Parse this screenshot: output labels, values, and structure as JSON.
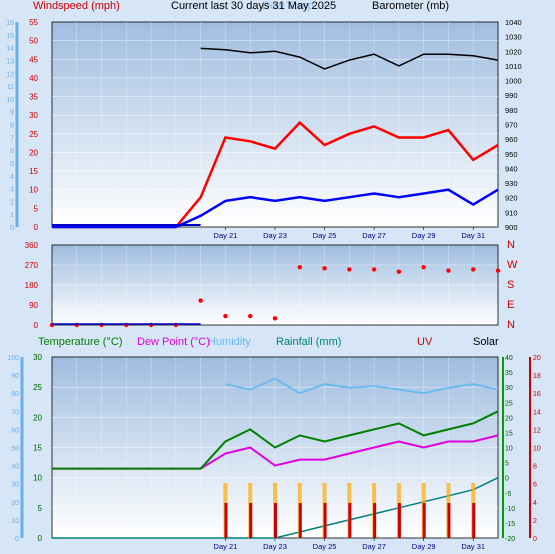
{
  "header": {
    "title": "Current last 30 days 31 May 2025",
    "legend": {
      "windspeed": "Windspeed (mph)",
      "ghost": "Dew Temp. ---",
      "barometer": "Barometer (mb)",
      "temperature": "Temperature (°C)",
      "dewpoint": "Dew Point (°C)",
      "humidity": "Humidity",
      "rainfall": "Rainfall (mm)",
      "uv": "UV",
      "solar": "Solar"
    }
  },
  "colors": {
    "background": "#d6e6f6",
    "plot_top": "#9fbde0",
    "plot_bottom": "#ffffff",
    "wind_gust": "#ff0000",
    "wind_avg": "#0000ff",
    "wind_label": "#cc0000",
    "barometer": "#000000",
    "pale_blue_axis": "#6aaeea",
    "temperature": "#008000",
    "dewpoint": "#e000e0",
    "humidity": "#66bbee",
    "rainfall": "#008080",
    "uv": "#cc0000",
    "solar_bars": "#ffaa00"
  },
  "chart_data": [
    {
      "type": "line",
      "title": "Windspeed / Barometer",
      "ylabel": "Windspeed (mph)",
      "y2label": "Barometer (mb)",
      "ylim": [
        0,
        55
      ],
      "y2lim": [
        900,
        1040
      ],
      "left_axis_labels": [
        "0",
        "5",
        "10",
        "15",
        "20",
        "25",
        "30",
        "35",
        "40",
        "45",
        "50",
        "55"
      ],
      "pale_axis_labels": [
        "0",
        "1",
        "2",
        "3",
        "4",
        "5",
        "6",
        "7",
        "8",
        "9",
        "10",
        "11",
        "12",
        "13",
        "14",
        "15",
        "16"
      ],
      "right_axis_labels": [
        "900",
        "910",
        "920",
        "930",
        "940",
        "950",
        "960",
        "970",
        "980",
        "990",
        "1000",
        "1010",
        "1020",
        "1030",
        "1040"
      ],
      "x_tick_labels": [
        "Day 21",
        "Day 23",
        "Day 25",
        "Day 27",
        "Day 29",
        "Day 31"
      ],
      "x_tick_days": [
        21,
        23,
        25,
        27,
        29,
        31
      ],
      "x_days": [
        14,
        15,
        16,
        17,
        18,
        19,
        20,
        21,
        22,
        23,
        24,
        25,
        26,
        27,
        28,
        29,
        30,
        31,
        32
      ],
      "series": [
        {
          "key": "barometer",
          "values": [
            null,
            null,
            null,
            null,
            null,
            null,
            1022,
            1021,
            1019,
            1020,
            1016,
            1008,
            1014,
            1018,
            1010,
            1018,
            1018,
            1017,
            1014
          ]
        },
        {
          "key": "gust",
          "values": [
            0,
            0,
            0,
            0,
            0,
            0,
            8,
            24,
            23,
            21,
            28,
            22,
            25,
            27,
            24,
            24,
            26,
            18,
            22
          ]
        },
        {
          "key": "avg",
          "values": [
            0,
            0,
            0,
            0,
            0,
            0,
            3,
            7,
            8,
            7,
            8,
            7,
            8,
            9,
            8,
            9,
            10,
            6,
            10
          ]
        }
      ],
      "grid": true
    },
    {
      "type": "scatter",
      "title": "Wind Direction",
      "left_axis_labels": [
        "0",
        "90",
        "180",
        "270",
        "360"
      ],
      "right_axis_labels": [
        "N",
        "E",
        "S",
        "W",
        "N"
      ],
      "ylim": [
        0,
        360
      ],
      "x_days": [
        14,
        15,
        16,
        17,
        18,
        19,
        20,
        21,
        22,
        23,
        24,
        25,
        26,
        27,
        28,
        29,
        30,
        31,
        32
      ],
      "values": [
        0,
        0,
        0,
        0,
        0,
        0,
        110,
        40,
        40,
        30,
        260,
        255,
        250,
        250,
        240,
        260,
        245,
        250,
        245
      ]
    },
    {
      "type": "line",
      "title": "Temperature / Humidity / Rainfall / UV / Solar",
      "ylabel": "Temperature (°C)",
      "ylim": [
        0,
        30
      ],
      "left_axis_labels": [
        "0",
        "5",
        "10",
        "15",
        "20",
        "25",
        "30"
      ],
      "pale_axis_labels": [
        "0",
        "10",
        "20",
        "30",
        "40",
        "50",
        "60",
        "70",
        "80",
        "90",
        "100"
      ],
      "right_axis_labels": [
        "-20",
        "-15",
        "-10",
        "-5",
        "0",
        "5",
        "10",
        "15",
        "20",
        "25",
        "30",
        "35",
        "40"
      ],
      "uv_axis_labels": [
        "0",
        "2",
        "4",
        "6",
        "8",
        "10",
        "12",
        "14",
        "16",
        "18",
        "20"
      ],
      "x_tick_labels": [
        "Day 21",
        "Day 23",
        "Day 25",
        "Day 27",
        "Day 29",
        "Day 31"
      ],
      "x_tick_days": [
        21,
        23,
        25,
        27,
        29,
        31
      ],
      "x_days": [
        14,
        15,
        16,
        17,
        18,
        19,
        20,
        21,
        22,
        23,
        24,
        25,
        26,
        27,
        28,
        29,
        30,
        31,
        32
      ],
      "series": [
        {
          "key": "temperature",
          "values": [
            11.5,
            11.5,
            11.5,
            11.5,
            11.5,
            11.5,
            11.5,
            16,
            18,
            15,
            17,
            16,
            17,
            18,
            19,
            17,
            18,
            19,
            21
          ]
        },
        {
          "key": "dewpoint",
          "values": [
            11.5,
            11.5,
            11.5,
            11.5,
            11.5,
            11.5,
            11.5,
            14,
            15,
            12,
            13,
            13,
            14,
            15,
            16,
            15,
            16,
            16,
            17
          ]
        },
        {
          "key": "humidity",
          "values": [
            null,
            null,
            null,
            null,
            null,
            null,
            null,
            85,
            82,
            88,
            80,
            85,
            83,
            84,
            82,
            80,
            83,
            85,
            82
          ]
        },
        {
          "key": "rainfall",
          "values": [
            0,
            0,
            0,
            0,
            0,
            0,
            0,
            0,
            0,
            0,
            1,
            2,
            3,
            4,
            5,
            6,
            7,
            8,
            10
          ]
        }
      ],
      "grid": true
    }
  ]
}
